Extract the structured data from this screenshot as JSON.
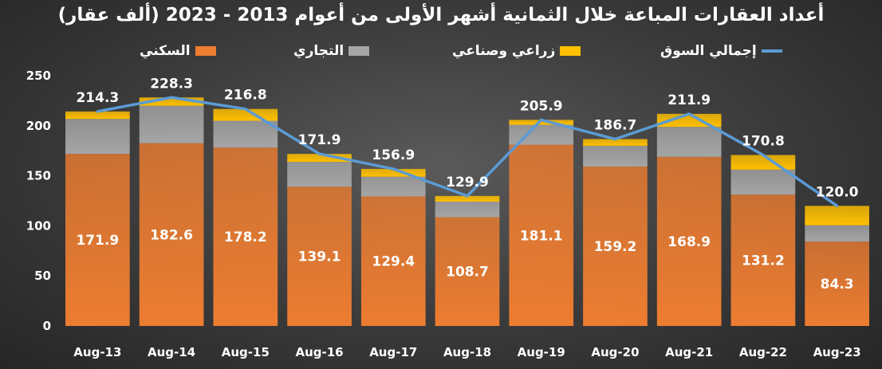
{
  "chart_data": {
    "type": "bar",
    "stacked": true,
    "title": "أعداد العقارات المباعة خلال الثمانية أشهر الأولى من أعوام 2013 - 2023 (ألف عقار)",
    "categories": [
      "Aug-13",
      "Aug-14",
      "Aug-15",
      "Aug-16",
      "Aug-17",
      "Aug-18",
      "Aug-19",
      "Aug-20",
      "Aug-21",
      "Aug-22",
      "Aug-23"
    ],
    "series": [
      {
        "name": "السكني",
        "color": "#ed7d31",
        "values": [
          171.9,
          182.6,
          178.2,
          139.1,
          129.4,
          108.7,
          181.1,
          159.2,
          168.9,
          131.2,
          84.3
        ]
      },
      {
        "name": "التجاري",
        "color": "#a5a5a5",
        "values": [
          34.9,
          37.4,
          26.8,
          24.8,
          19.7,
          15.5,
          19.8,
          20.8,
          30.0,
          25.0,
          16.3
        ]
      },
      {
        "name": "زراعي وصناعي",
        "color": "#ffc000",
        "values": [
          7.5,
          8.3,
          11.8,
          8.0,
          7.8,
          5.7,
          5.0,
          6.7,
          13.0,
          14.6,
          19.4
        ]
      }
    ],
    "line_series": {
      "name": "إجمالي السوق",
      "color": "#5b9bd5",
      "values": [
        214.3,
        228.3,
        216.8,
        171.9,
        156.9,
        129.9,
        205.9,
        186.7,
        211.9,
        170.8,
        120.0
      ]
    },
    "total_labels": [
      "214.3",
      "228.3",
      "216.8",
      "171.9",
      "156.9",
      "129.9",
      "205.9",
      "186.7",
      "211.9",
      "170.8",
      "120.0"
    ],
    "residential_labels": [
      "171.9",
      "182.6",
      "178.2",
      "139.1",
      "129.4",
      "108.7",
      "181.1",
      "159.2",
      "168.9",
      "131.2",
      "84.3"
    ],
    "ylim": [
      0,
      250
    ],
    "yticks": [
      0,
      50,
      100,
      150,
      200,
      250
    ],
    "grid": false,
    "legend_position": "top"
  }
}
